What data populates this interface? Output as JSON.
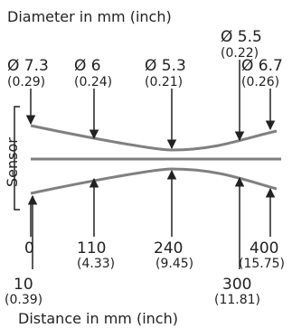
{
  "titles": {
    "top": "Diameter in mm (inch)",
    "bottom": "Distance in mm (inch)"
  },
  "sensor_label": "Sensor",
  "diameters": [
    {
      "mm": "Ø 7.3",
      "inch": "(0.29)"
    },
    {
      "mm": "Ø 6",
      "inch": "(0.24)"
    },
    {
      "mm": "Ø 5.3",
      "inch": "(0.21)"
    },
    {
      "mm": "Ø 5.5",
      "inch": "(0.22)"
    },
    {
      "mm": "Ø 6.7",
      "inch": "(0.26)"
    }
  ],
  "distances": [
    {
      "mm": "0"
    },
    {
      "mm": "110",
      "inch": "(4.33)"
    },
    {
      "mm": "240",
      "inch": "(9.45)"
    },
    {
      "mm": "400",
      "inch": "(15.75)"
    },
    {
      "mm": "10",
      "inch": "(0.39)"
    },
    {
      "mm": "300",
      "inch": "(11.81)"
    }
  ],
  "colors": {
    "beam": "#808080",
    "axis": "#222222",
    "text": "#222222"
  }
}
